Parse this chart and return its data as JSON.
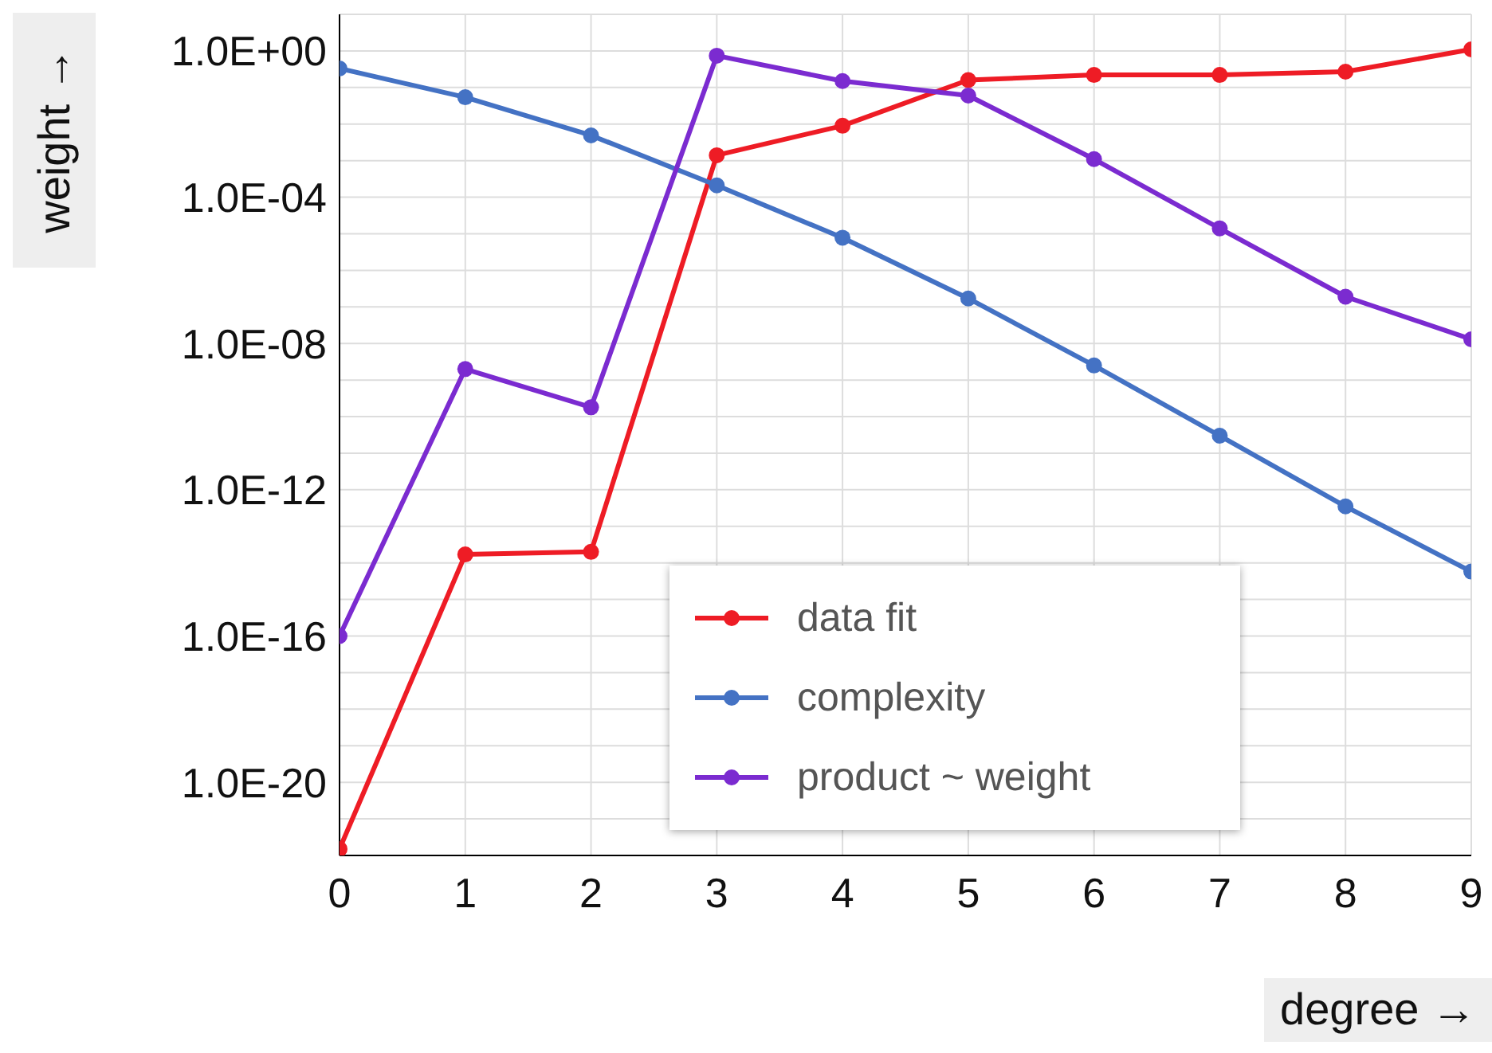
{
  "chart_data": {
    "type": "line",
    "xlabel": "degree →",
    "ylabel": "weight →",
    "x": [
      0,
      1,
      2,
      3,
      4,
      5,
      6,
      7,
      8,
      9
    ],
    "series": [
      {
        "name": "data fit",
        "color": "#ee1c25",
        "values": [
          1.5e-22,
          1.7e-14,
          2e-14,
          0.0014,
          0.009,
          0.16,
          0.22,
          0.22,
          0.27,
          1.1
        ]
      },
      {
        "name": "complexity",
        "color": "#4472c4",
        "values": [
          0.33,
          0.054,
          0.0049,
          0.00021,
          7.8e-06,
          1.7e-07,
          2.5e-09,
          3e-11,
          3.5e-13,
          5.8e-15
        ]
      },
      {
        "name": "product ~ weight",
        "color": "#7b2bd0",
        "values": [
          1e-16,
          2e-09,
          1.8e-10,
          0.74,
          0.15,
          0.06,
          0.0011,
          1.4e-05,
          1.9e-07,
          1.3e-08
        ]
      }
    ],
    "log": "y",
    "xlim": [
      0,
      9
    ],
    "xticks": [
      0,
      1,
      2,
      3,
      4,
      5,
      6,
      7,
      8,
      9
    ],
    "ylim": [
      1e-22,
      10
    ],
    "yticks": [
      {
        "value": 1e-22,
        "label": null
      },
      {
        "value": 1e-21,
        "label": null
      },
      {
        "value": 1e-20,
        "label": "1.0E-20"
      },
      {
        "value": 1e-19,
        "label": null
      },
      {
        "value": 1e-18,
        "label": null
      },
      {
        "value": 1e-17,
        "label": null
      },
      {
        "value": 1e-16,
        "label": "1.0E-16"
      },
      {
        "value": 1e-15,
        "label": null
      },
      {
        "value": 1e-14,
        "label": null
      },
      {
        "value": 1e-13,
        "label": null
      },
      {
        "value": 1e-12,
        "label": "1.0E-12"
      },
      {
        "value": 1e-11,
        "label": null
      },
      {
        "value": 1e-10,
        "label": null
      },
      {
        "value": 1e-09,
        "label": null
      },
      {
        "value": 1e-08,
        "label": "1.0E-08"
      },
      {
        "value": 1e-07,
        "label": null
      },
      {
        "value": 1e-06,
        "label": null
      },
      {
        "value": 1e-05,
        "label": null
      },
      {
        "value": 0.0001,
        "label": "1.0E-04"
      },
      {
        "value": 0.001,
        "label": null
      },
      {
        "value": 0.01,
        "label": null
      },
      {
        "value": 0.1,
        "label": null
      },
      {
        "value": 1,
        "label": "1.0E+00"
      },
      {
        "value": 10,
        "label": null
      }
    ],
    "grid": true,
    "legend": "bottom",
    "marker": "circle",
    "line_style": "solid"
  }
}
